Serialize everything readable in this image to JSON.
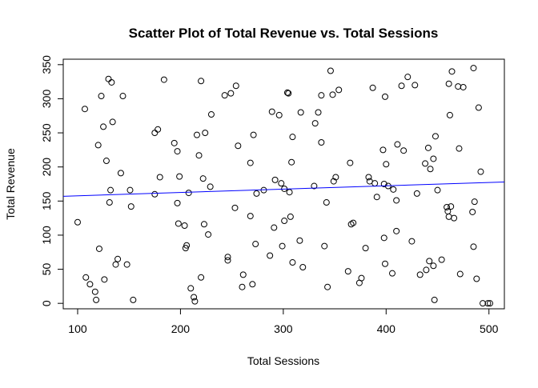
{
  "chart_data": {
    "type": "scatter",
    "title": "Scatter Plot of Total Revenue vs. Total Sessions",
    "xlabel": "Total Sessions",
    "ylabel": "Total Revenue",
    "xlim": [
      86,
      515
    ],
    "ylim": [
      -8,
      358
    ],
    "xticks": [
      100,
      200,
      300,
      400,
      500
    ],
    "yticks": [
      0,
      50,
      100,
      150,
      200,
      250,
      300,
      350
    ],
    "grid": false,
    "legend": "none",
    "point_color": "#000000",
    "trendline": {
      "color": "#0000ff",
      "x": [
        86,
        515
      ],
      "y": [
        157,
        178
      ]
    },
    "series": [
      {
        "x": [
          100,
          107,
          108,
          112,
          117,
          118,
          120,
          121,
          123,
          125,
          126,
          128,
          130,
          131,
          132,
          133,
          134,
          137,
          139,
          142,
          144,
          148,
          151,
          152,
          154,
          175,
          175,
          178,
          180,
          184,
          194,
          197,
          197,
          198,
          199,
          204,
          205,
          206,
          208,
          210,
          213,
          214,
          216,
          218,
          220,
          220,
          222,
          223,
          224,
          227,
          229,
          230,
          243,
          246,
          246,
          249,
          253,
          254,
          256,
          260,
          261,
          268,
          268,
          270,
          271,
          273,
          274,
          281,
          287,
          289,
          291,
          292,
          296,
          298,
          299,
          301,
          301,
          304,
          305,
          306,
          307,
          308,
          309,
          309,
          316,
          317,
          319,
          330,
          331,
          334,
          337,
          337,
          340,
          342,
          343,
          346,
          348,
          349,
          351,
          354,
          363,
          365,
          366,
          368,
          374,
          376,
          380,
          383,
          384,
          387,
          389,
          391,
          397,
          398,
          398,
          399,
          399,
          400,
          402,
          406,
          407,
          410,
          410,
          411,
          415,
          417,
          421,
          425,
          428,
          430,
          433,
          438,
          439,
          441,
          442,
          443,
          446,
          446,
          447,
          448,
          450,
          454,
          459,
          460,
          461,
          461,
          462,
          463,
          464,
          466,
          470,
          471,
          472,
          475,
          484,
          485,
          485,
          486,
          488,
          490,
          492,
          494,
          499,
          501
        ],
        "y": [
          119,
          285,
          38,
          28,
          17,
          5,
          232,
          80,
          304,
          259,
          35,
          209,
          329,
          148,
          166,
          324,
          266,
          57,
          65,
          191,
          304,
          57,
          166,
          142,
          5,
          160,
          250,
          255,
          185,
          328,
          235,
          223,
          147,
          117,
          186,
          114,
          81,
          85,
          162,
          22,
          9,
          3,
          247,
          217,
          38,
          326,
          183,
          116,
          250,
          101,
          171,
          277,
          305,
          63,
          68,
          308,
          140,
          319,
          231,
          24,
          42,
          206,
          128,
          28,
          247,
          87,
          161,
          166,
          70,
          281,
          111,
          181,
          276,
          176,
          84,
          121,
          168,
          309,
          308,
          163,
          127,
          207,
          60,
          244,
          92,
          280,
          53,
          172,
          264,
          280,
          236,
          305,
          84,
          148,
          24,
          341,
          306,
          179,
          185,
          313,
          47,
          206,
          116,
          118,
          30,
          37,
          81,
          185,
          179,
          316,
          176,
          156,
          225,
          96,
          175,
          303,
          58,
          204,
          172,
          44,
          167,
          106,
          151,
          233,
          319,
          224,
          332,
          91,
          320,
          161,
          42,
          205,
          49,
          228,
          62,
          197,
          55,
          212,
          5,
          245,
          166,
          64,
          141,
          135,
          127,
          322,
          276,
          142,
          340,
          125,
          318,
          227,
          43,
          317,
          134,
          83,
          345,
          149,
          36,
          287,
          193,
          0,
          0,
          0
        ]
      }
    ]
  }
}
